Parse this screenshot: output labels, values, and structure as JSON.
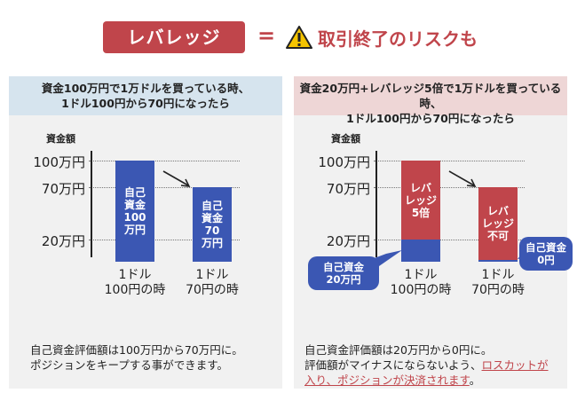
{
  "header": {
    "badge": "レバレッジ",
    "equals": "=",
    "risk": "取引終了のリスクも",
    "warning_icon": "warning-triangle-icon",
    "accent": "#c0454b"
  },
  "left_panel": {
    "heading_line1": "資金100万円で1万ドルを買っている時、",
    "heading_line2": "1ドル100円から70円になったら",
    "axis_title": "資金額",
    "ticks": [
      "100万円",
      "70万円",
      "20万円"
    ],
    "bars": [
      {
        "text": "自己\n資金\n100\n万円",
        "color": "#3b57b3"
      },
      {
        "text": "自己\n資金\n70\n万円",
        "color": "#3b57b3"
      }
    ],
    "xlabels": [
      {
        "line1": "1ドル",
        "line2": "100円の時"
      },
      {
        "line1": "1ドル",
        "line2": "70円の時"
      }
    ],
    "note_line1": "自己資金評価額は100万円から70万円に。",
    "note_line2": "ポジションをキープする事ができます。"
  },
  "right_panel": {
    "heading_line1": "資金20万円+レバレッジ5倍で1万ドルを買っている時、",
    "heading_line2": "1ドル100円から70円になったら",
    "axis_title": "資金額",
    "ticks": [
      "100万円",
      "70万円",
      "20万円"
    ],
    "bars": [
      {
        "text": "レバ\nレッジ\n5倍",
        "color": "#c0454b"
      },
      {
        "text": "レバ\nレッジ\n不可",
        "color": "#c0454b"
      }
    ],
    "bubbles": [
      {
        "line1": "自己資金",
        "line2": "20万円"
      },
      {
        "line1": "自己資金",
        "line2": "0円"
      }
    ],
    "xlabels": [
      {
        "line1": "1ドル",
        "line2": "100円の時"
      },
      {
        "line1": "1ドル",
        "line2": "70円の時"
      }
    ],
    "note_line1": "自己資金評価額は20万円から0円に。",
    "note_line2a": "評価額がマイナスにならないよう、",
    "note_line2b": "ロスカットが",
    "note_line3a": "入り、ポジションが決済されます",
    "note_line3b": "。"
  },
  "chart_data": [
    {
      "type": "bar",
      "categories": [
        "1ドル100円の時",
        "1ドル70円の時"
      ],
      "ylabel": "資金額",
      "yticks": [
        "100万円",
        "70万円",
        "20万円"
      ],
      "series": [
        {
          "values": [
            100,
            70
          ]
        }
      ]
    },
    {
      "type": "bar",
      "categories": [
        "1ドル100円の時",
        "1ドル70円の時"
      ],
      "ylabel": "資金額",
      "yticks": [
        "100万円",
        "70万円",
        "20万円"
      ],
      "series": [
        {
          "values": [
            20,
            0
          ]
        },
        {
          "values": [
            80,
            70
          ]
        }
      ]
    }
  ]
}
